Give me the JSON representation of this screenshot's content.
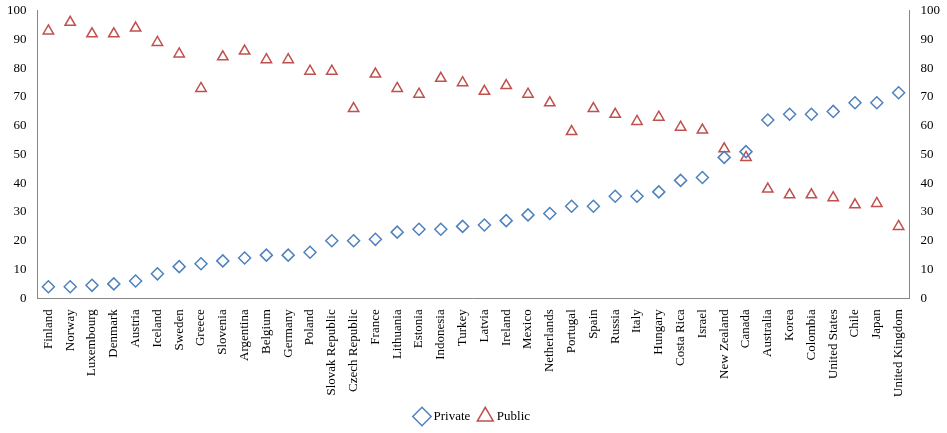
{
  "chart_data": {
    "type": "line",
    "categories": [
      "Finland",
      "Norway",
      "Luxembourg",
      "Denmark",
      "Austria",
      "Iceland",
      "Sweden",
      "Greece",
      "Slovenia",
      "Argentina",
      "Belgium",
      "Germany",
      "Poland",
      "Slovak Republic",
      "Czech Republic",
      "France",
      "Lithuania",
      "Estonia",
      "Indonesia",
      "Turkey",
      "Latvia",
      "Ireland",
      "Mexico",
      "Netherlands",
      "Portugal",
      "Spain",
      "Russia",
      "Italy",
      "Hungary",
      "Costa Rica",
      "Israel",
      "New Zealand",
      "Canada",
      "Australia",
      "Korea",
      "Colombia",
      "United States",
      "Chile",
      "Japan",
      "United Kingdom"
    ],
    "series": [
      {
        "name": "Private",
        "color": "#4f81bd",
        "marker": "diamond",
        "line_style": "none",
        "values": [
          4,
          4,
          4.5,
          5,
          6,
          8.5,
          11,
          12,
          13,
          14,
          15,
          15,
          16,
          20,
          20,
          20.5,
          23,
          24,
          24,
          25,
          25.5,
          27,
          29,
          29.5,
          32,
          32,
          35.5,
          35.5,
          37,
          41,
          42,
          49,
          51,
          62,
          64,
          64,
          65,
          68,
          68,
          71.5
        ]
      },
      {
        "name": "Public",
        "color": "#c0504d",
        "marker": "triangle",
        "line_style": "none",
        "axis": "y2",
        "values": [
          93,
          96,
          92,
          92,
          94,
          89,
          85,
          73,
          84,
          86,
          83,
          83,
          79,
          79,
          66,
          78,
          73,
          71,
          76.5,
          75,
          72,
          74,
          71,
          68,
          58,
          66,
          64,
          61.5,
          63,
          59.5,
          58.5,
          52,
          49,
          38,
          36,
          36,
          35,
          32.5,
          33,
          25
        ]
      }
    ],
    "ylim": [
      0,
      100
    ],
    "yticks": [
      0,
      10,
      20,
      30,
      40,
      50,
      60,
      70,
      80,
      90,
      100
    ],
    "y2lim": [
      0,
      100
    ],
    "y2ticks": [
      0,
      10,
      20,
      30,
      40,
      50,
      60,
      70,
      80,
      90,
      100
    ],
    "grid": false,
    "legend": "bottom"
  }
}
